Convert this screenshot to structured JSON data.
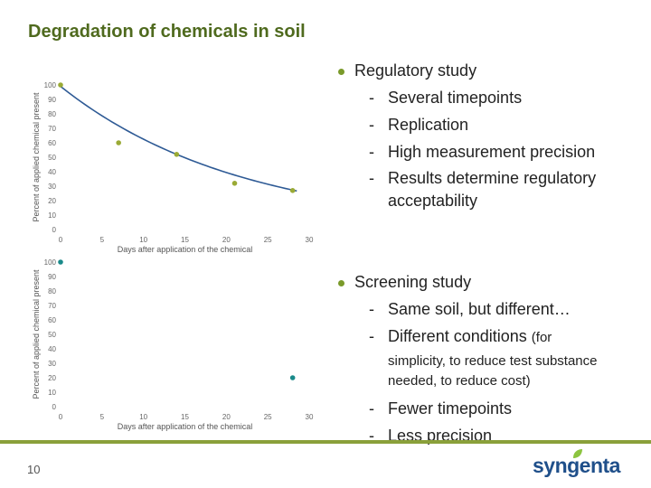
{
  "slide": {
    "title": "Degradation of chemicals in soil",
    "page_number": "10",
    "logo": "syngenta"
  },
  "colors": {
    "title": "#4f6a1e",
    "regulatory_series": "#9aaa35",
    "screening_series": "#1a8a8a",
    "bullet_dot": "#7a9a2a",
    "footer_bar": "#8aa03a",
    "logo_blue": "#1f4f8a",
    "logo_green": "#8cc43f"
  },
  "bullets": {
    "regulatory": {
      "heading": "Regulatory study",
      "items": [
        "Several timepoints",
        "Replication",
        "High measurement precision",
        "Results determine regulatory"
      ],
      "item_continuation": "acceptability"
    },
    "screening": {
      "heading": "Screening study",
      "items": [
        "Same soil, but different…",
        "Different conditions",
        "Fewer timepoints",
        "Less precision"
      ],
      "item_2_suffix": "(for",
      "item_2_continuation": [
        "simplicity, to reduce test substance",
        "needed, to reduce cost)"
      ]
    }
  },
  "chart_data": [
    {
      "type": "scatter",
      "xlabel": "Days after application of the chemical",
      "ylabel": "Percent of applied chemical present",
      "xlim": [
        0,
        30
      ],
      "ylim": [
        0,
        100
      ],
      "x_ticks": [
        0,
        5,
        10,
        15,
        20,
        25,
        30
      ],
      "y_ticks": [
        0,
        10,
        20,
        30,
        40,
        50,
        60,
        70,
        80,
        90,
        100
      ],
      "grid": false,
      "trendline": "exponential",
      "trend": {
        "a": 99,
        "k": 0.046,
        "x_end": 28.5
      },
      "points": [
        {
          "x": 0,
          "y": 100
        },
        {
          "x": 7,
          "y": 60
        },
        {
          "x": 14,
          "y": 52
        },
        {
          "x": 21,
          "y": 32
        },
        {
          "x": 28,
          "y": 27
        }
      ]
    },
    {
      "type": "scatter",
      "xlabel": "Days after application of the chemical",
      "ylabel": "Percent of applied chemical present",
      "xlim": [
        0,
        30
      ],
      "ylim": [
        0,
        100
      ],
      "x_ticks": [
        0,
        5,
        10,
        15,
        20,
        25,
        30
      ],
      "y_ticks": [
        0,
        10,
        20,
        30,
        40,
        50,
        60,
        70,
        80,
        90,
        100
      ],
      "grid": false,
      "points": [
        {
          "x": 0,
          "y": 100
        },
        {
          "x": 28,
          "y": 20
        }
      ]
    }
  ]
}
